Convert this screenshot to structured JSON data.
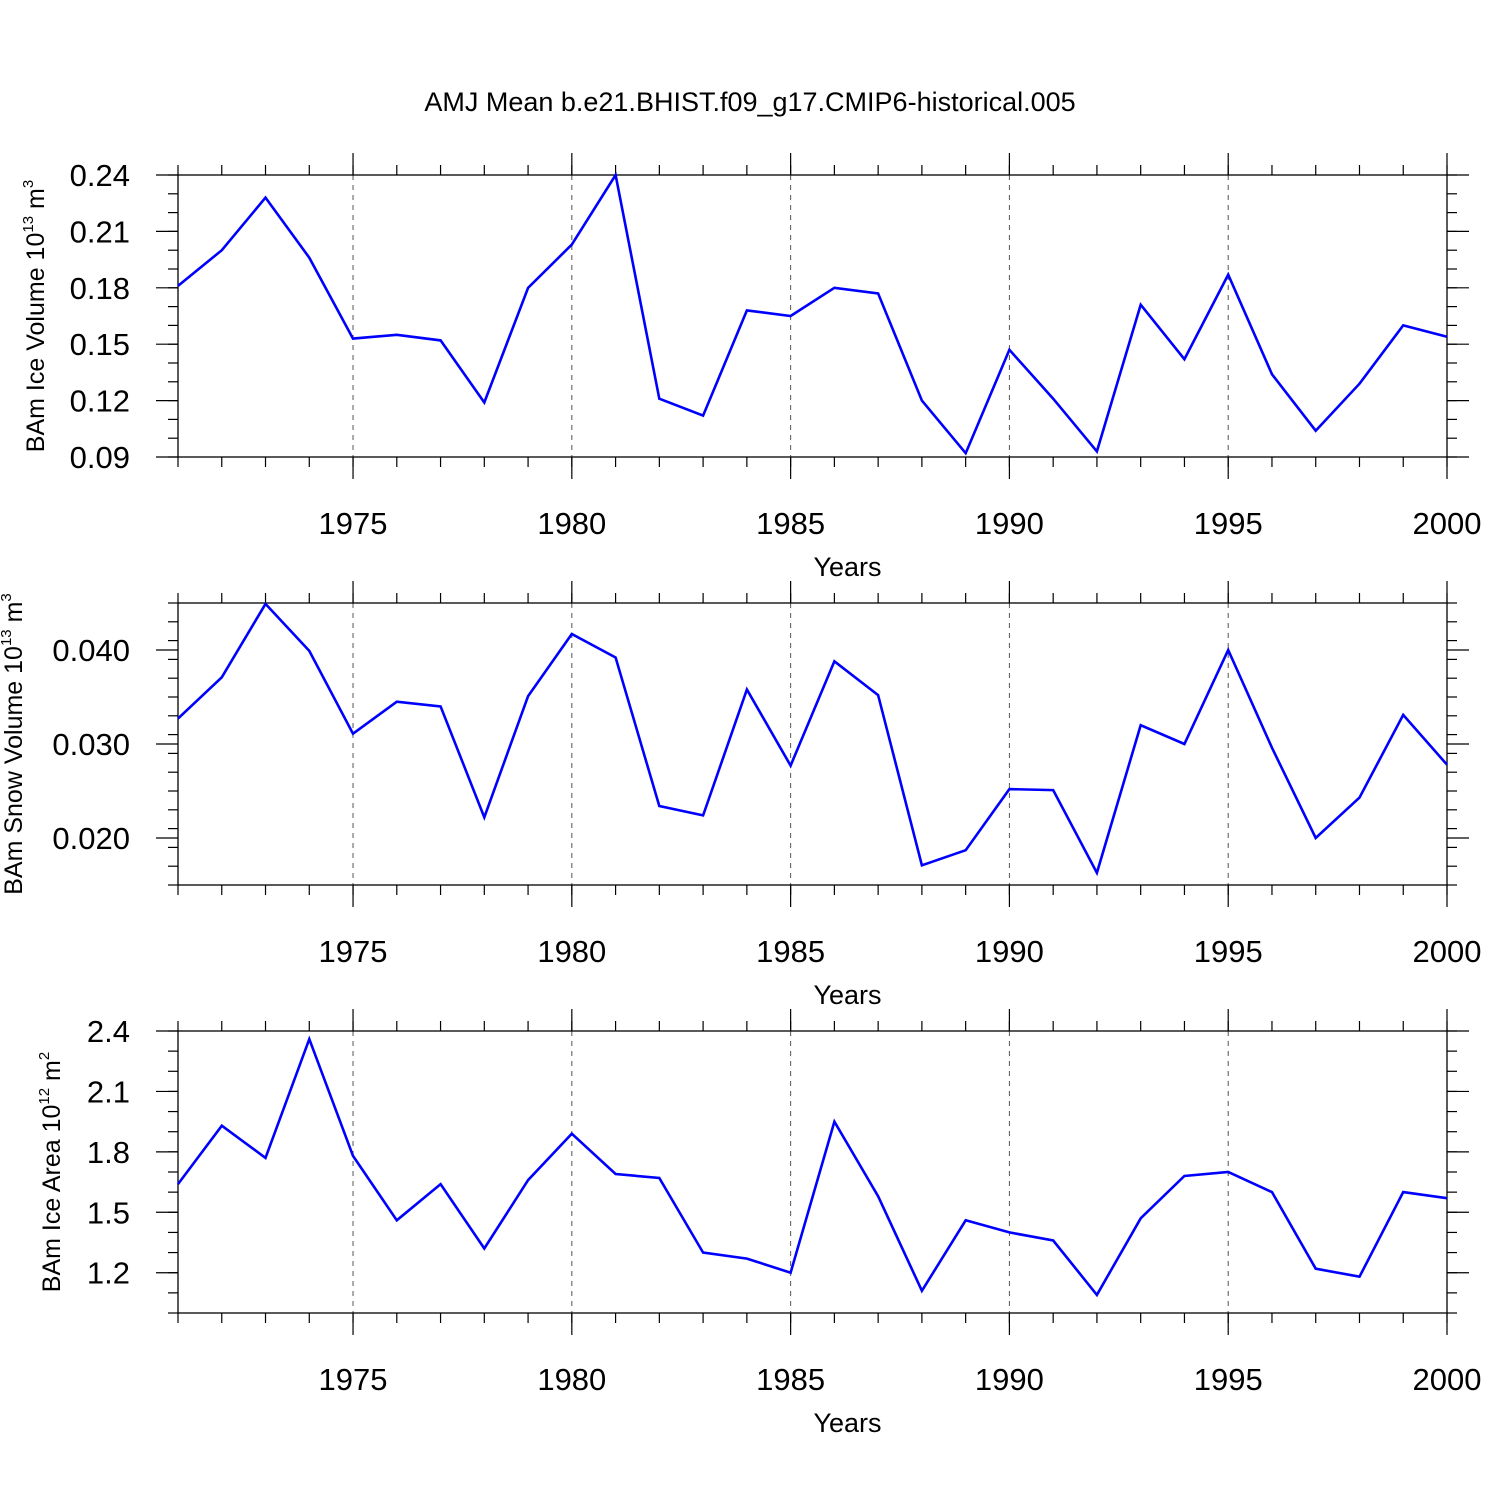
{
  "title": "AMJ Mean b.e21.BHIST.f09_g17.CMIP6-historical.005",
  "colors": {
    "series": "#0000ff",
    "axis": "#000000",
    "grid": "#555555"
  },
  "chart_data": [
    {
      "type": "line",
      "ylabel": {
        "text": "BAm Ice Volume 10",
        "exp": "13",
        "unit": " m",
        "unit_exp": "3"
      },
      "xlabel": "Years",
      "xlim": [
        1971,
        2000
      ],
      "ylim": [
        0.09,
        0.24
      ],
      "xticks": [
        1975,
        1980,
        1985,
        1990,
        1995,
        2000
      ],
      "yticks": [
        0.09,
        0.12,
        0.15,
        0.18,
        0.21,
        0.24
      ],
      "yticklabels": [
        "0.09",
        "0.12",
        "0.15",
        "0.18",
        "0.21",
        "0.24"
      ],
      "yminor": 0.01,
      "x": [
        1971,
        1972,
        1973,
        1974,
        1975,
        1976,
        1977,
        1978,
        1979,
        1980,
        1981,
        1982,
        1983,
        1984,
        1985,
        1986,
        1987,
        1988,
        1989,
        1990,
        1991,
        1992,
        1993,
        1994,
        1995,
        1996,
        1997,
        1998,
        1999,
        2000
      ],
      "values": [
        0.181,
        0.2,
        0.228,
        0.196,
        0.153,
        0.155,
        0.152,
        0.119,
        0.18,
        0.203,
        0.24,
        0.121,
        0.112,
        0.168,
        0.165,
        0.18,
        0.177,
        0.12,
        0.092,
        0.147,
        0.121,
        0.093,
        0.171,
        0.142,
        0.187,
        0.134,
        0.104,
        0.129,
        0.16,
        0.154
      ]
    },
    {
      "type": "line",
      "ylabel": {
        "text": "BAm Snow Volume 10",
        "exp": "13",
        "unit": " m",
        "unit_exp": "3"
      },
      "xlabel": "Years",
      "xlim": [
        1971,
        2000
      ],
      "ylim": [
        0.015,
        0.045
      ],
      "xticks": [
        1975,
        1980,
        1985,
        1990,
        1995,
        2000
      ],
      "yticks": [
        0.02,
        0.03,
        0.04
      ],
      "yticklabels": [
        "0.020",
        "0.030",
        "0.040"
      ],
      "yminor": 0.002,
      "x": [
        1971,
        1972,
        1973,
        1974,
        1975,
        1976,
        1977,
        1978,
        1979,
        1980,
        1981,
        1982,
        1983,
        1984,
        1985,
        1986,
        1987,
        1988,
        1989,
        1990,
        1991,
        1992,
        1993,
        1994,
        1995,
        1996,
        1997,
        1998,
        1999,
        2000
      ],
      "values": [
        0.0327,
        0.0371,
        0.0449,
        0.0399,
        0.0311,
        0.0345,
        0.034,
        0.0222,
        0.0351,
        0.0417,
        0.0392,
        0.0234,
        0.0224,
        0.0358,
        0.0277,
        0.0388,
        0.0352,
        0.0171,
        0.0187,
        0.0252,
        0.0251,
        0.0163,
        0.032,
        0.03,
        0.04,
        0.0296,
        0.02,
        0.0243,
        0.0331,
        0.0278
      ]
    },
    {
      "type": "line",
      "ylabel": {
        "text": "BAm Ice Area 10",
        "exp": "12",
        "unit": " m",
        "unit_exp": "2"
      },
      "xlabel": "Years",
      "xlim": [
        1971,
        2000
      ],
      "ylim": [
        1.0,
        2.4
      ],
      "xticks": [
        1975,
        1980,
        1985,
        1990,
        1995,
        2000
      ],
      "yticks": [
        1.2,
        1.5,
        1.8,
        2.1,
        2.4
      ],
      "yticklabels": [
        "1.2",
        "1.5",
        "1.8",
        "2.1",
        "2.4"
      ],
      "yminor": 0.1,
      "x": [
        1971,
        1972,
        1973,
        1974,
        1975,
        1976,
        1977,
        1978,
        1979,
        1980,
        1981,
        1982,
        1983,
        1984,
        1985,
        1986,
        1987,
        1988,
        1989,
        1990,
        1991,
        1992,
        1993,
        1994,
        1995,
        1996,
        1997,
        1998,
        1999,
        2000
      ],
      "values": [
        1.64,
        1.93,
        1.77,
        2.36,
        1.78,
        1.46,
        1.64,
        1.32,
        1.66,
        1.89,
        1.69,
        1.67,
        1.3,
        1.27,
        1.2,
        1.95,
        1.58,
        1.11,
        1.46,
        1.4,
        1.36,
        1.09,
        1.47,
        1.68,
        1.7,
        1.6,
        1.22,
        1.18,
        1.6,
        1.57
      ]
    }
  ]
}
